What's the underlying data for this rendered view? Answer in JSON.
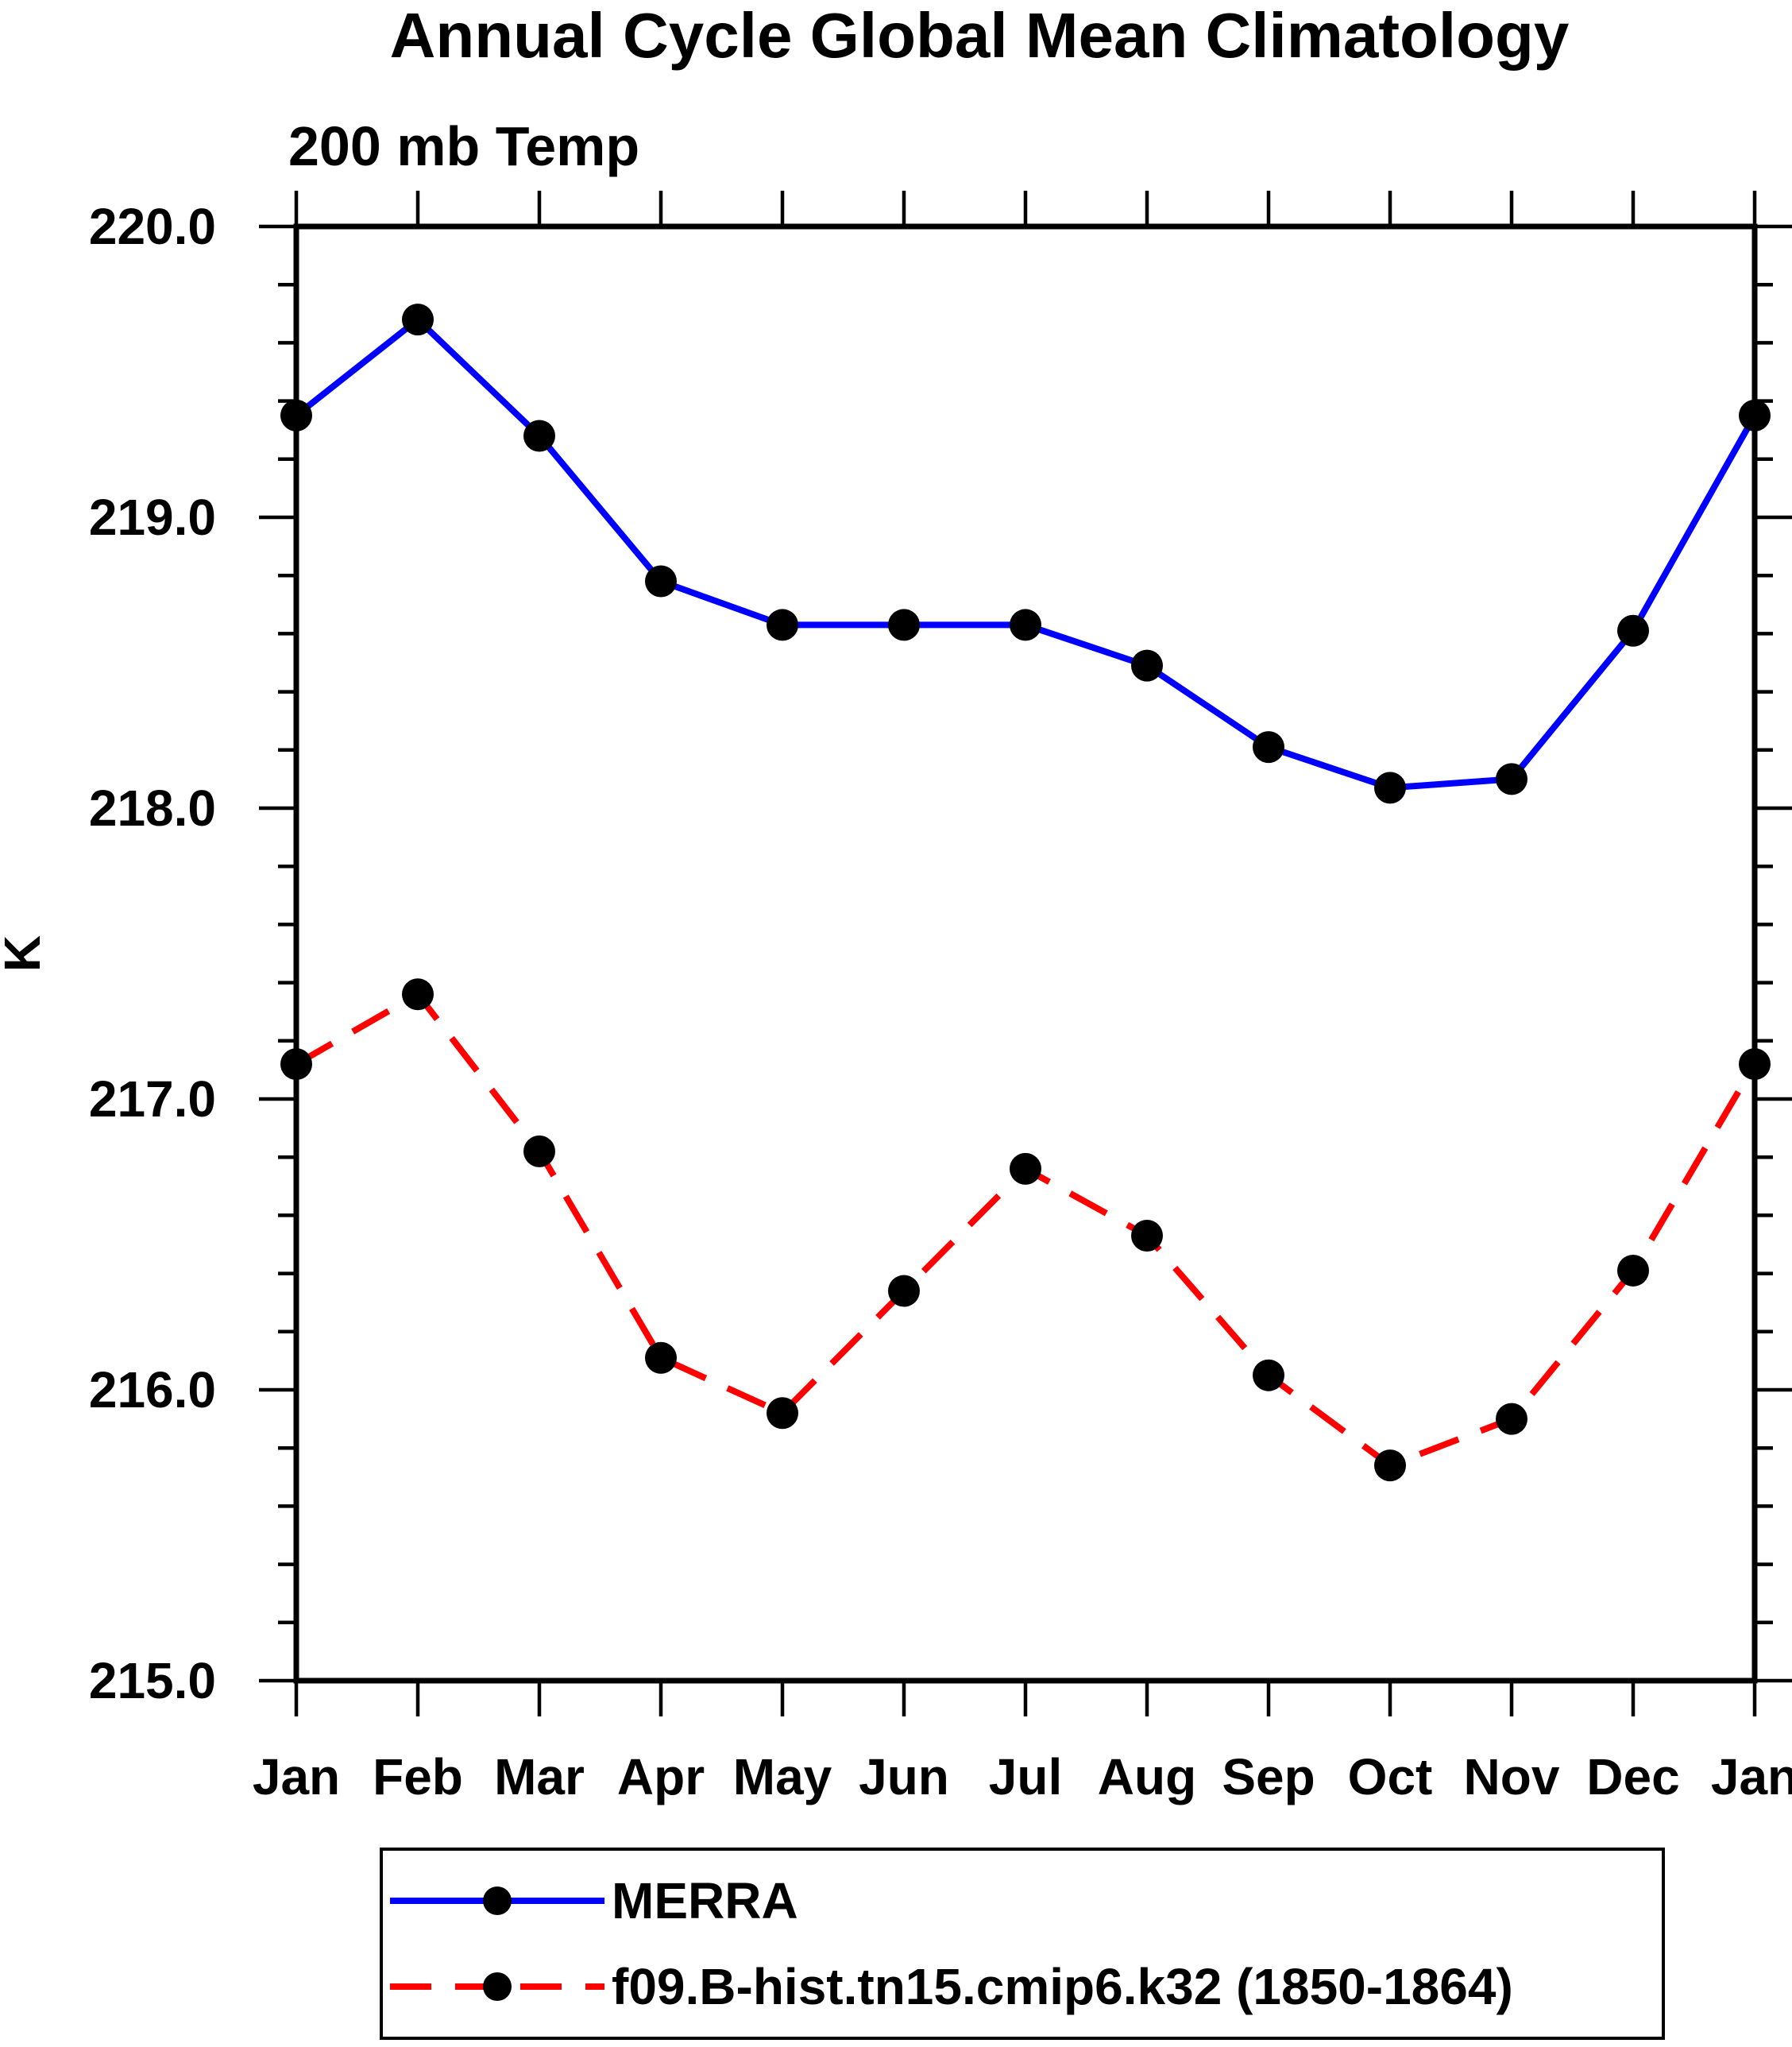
{
  "title": "Annual Cycle Global Mean Climatology",
  "subtitle": "200 mb Temp",
  "y_axis_title": "K",
  "chart_data": {
    "type": "line",
    "title": "Annual Cycle Global Mean Climatology",
    "subtitle": "200 mb Temp",
    "ylabel": "K",
    "x_categories": [
      "Jan",
      "Feb",
      "Mar",
      "Apr",
      "May",
      "Jun",
      "Jul",
      "Aug",
      "Sep",
      "Oct",
      "Nov",
      "Dec",
      "Jan"
    ],
    "ylim": [
      215.0,
      220.0
    ],
    "y_major_step": 1.0,
    "y_minor_step": 0.2,
    "y_tick_labels": [
      "215.0",
      "216.0",
      "217.0",
      "218.0",
      "219.0",
      "220.0"
    ],
    "grid": "off",
    "legend_position": "bottom",
    "marker_color": "#000000",
    "series": [
      {
        "name": "MERRA",
        "color": "#0000ff",
        "style": "solid",
        "marker": "circle",
        "values": [
          219.35,
          219.68,
          219.28,
          218.78,
          218.63,
          218.63,
          218.63,
          218.49,
          218.21,
          218.07,
          218.1,
          218.61,
          219.35
        ]
      },
      {
        "name": "f09.B-hist.tn15.cmip6.k32 (1850-1864)",
        "color": "#ff0000",
        "style": "dashed",
        "marker": "circle",
        "values": [
          217.12,
          217.36,
          216.82,
          216.11,
          215.92,
          216.34,
          216.76,
          216.53,
          216.05,
          215.74,
          215.9,
          216.41,
          217.12
        ]
      }
    ]
  }
}
